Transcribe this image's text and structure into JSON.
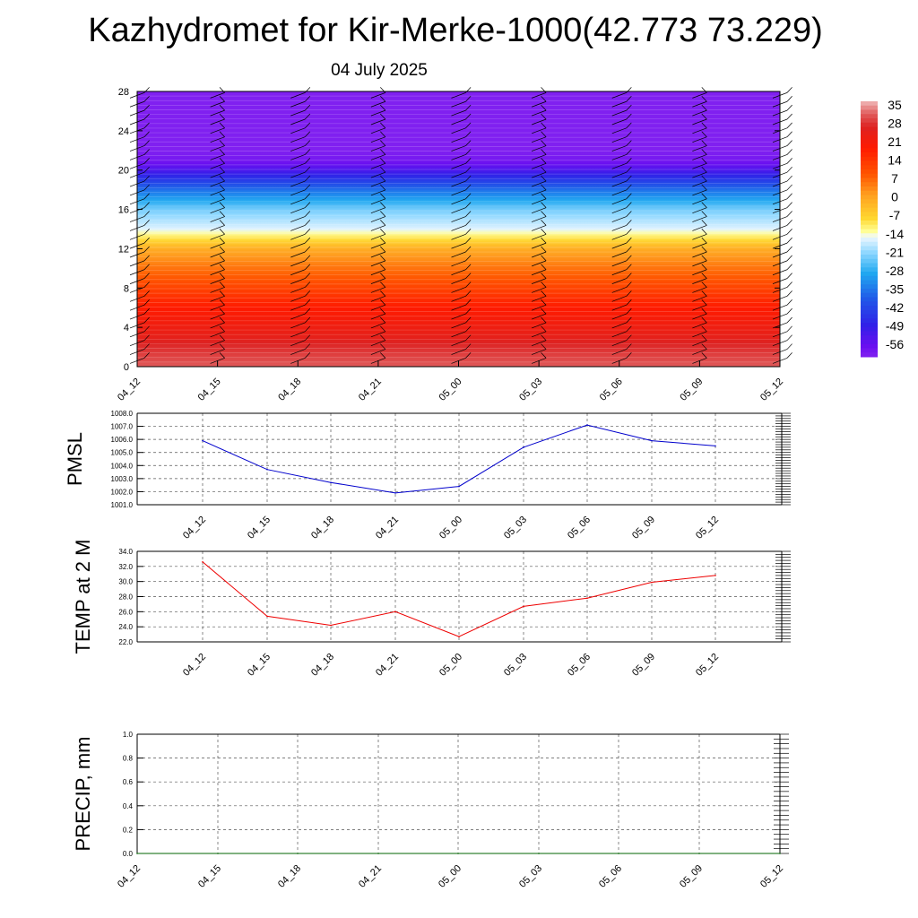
{
  "header": {
    "title": "Kazhydromet for Kir-Merke-1000(42.773 73.229)",
    "date": "04 July 2025"
  },
  "colors": {
    "pmsl_line": "#0000cc",
    "temp_line": "#ee0000",
    "precip_line": "#006400"
  },
  "chart_data": [
    {
      "type": "heatmap",
      "name": "cross-section",
      "x_ticks": [
        "04_12",
        "04_15",
        "04_18",
        "04_21",
        "05_00",
        "05_03",
        "05_06",
        "05_09",
        "05_12"
      ],
      "y_ticks": [
        0,
        4,
        8,
        12,
        16,
        20,
        24,
        28
      ],
      "ylim": [
        0,
        28
      ],
      "colorbar": {
        "labels": [
          "35",
          "28",
          "21",
          "14",
          "7",
          "0",
          "-7",
          "-14",
          "-21",
          "-28",
          "-35",
          "-42",
          "-49",
          "-56"
        ],
        "range": [
          -60,
          38
        ],
        "stops": [
          {
            "v": 38,
            "c": "#f0b8b8"
          },
          {
            "v": 33,
            "c": "#e05a5a"
          },
          {
            "v": 28,
            "c": "#dd2222"
          },
          {
            "v": 20,
            "c": "#ff1a00"
          },
          {
            "v": 10,
            "c": "#ff5500"
          },
          {
            "v": 2,
            "c": "#ffa020"
          },
          {
            "v": -7,
            "c": "#ffd830"
          },
          {
            "v": -12,
            "c": "#ffff9a"
          },
          {
            "v": -14,
            "c": "#f0f8ff"
          },
          {
            "v": -20,
            "c": "#90d8ff"
          },
          {
            "v": -28,
            "c": "#20a8f0"
          },
          {
            "v": -38,
            "c": "#2058e8"
          },
          {
            "v": -48,
            "c": "#3020e8"
          },
          {
            "v": -56,
            "c": "#6a10f0"
          },
          {
            "v": -60,
            "c": "#8020f0"
          }
        ]
      },
      "profile": {
        "heights": [
          0,
          1,
          2,
          3,
          4,
          5,
          6,
          8,
          10,
          12,
          13,
          14,
          16,
          18,
          20,
          21,
          22,
          28
        ],
        "temps": [
          33,
          31,
          29,
          26,
          24,
          22,
          20,
          13,
          7,
          0,
          -8,
          -15,
          -22,
          -35,
          -52,
          -58,
          -60,
          -60
        ]
      },
      "wind_barbs": "vertical column of barbs at each time step"
    },
    {
      "type": "line",
      "name": "PMSL",
      "ylabel": "PMSL",
      "x": [
        "04_12",
        "04_15",
        "04_18",
        "04_21",
        "05_00",
        "05_03",
        "05_06",
        "05_09",
        "05_12"
      ],
      "values": [
        1005.9,
        1003.7,
        1002.7,
        1001.9,
        1002.4,
        1005.4,
        1007.1,
        1005.9,
        1005.5
      ],
      "ylim": [
        1001.0,
        1008.0
      ],
      "y_ticks": [
        "1001.0",
        "1002.0",
        "1003.0",
        "1004.0",
        "1005.0",
        "1006.0",
        "1007.0",
        "1008.0"
      ]
    },
    {
      "type": "line",
      "name": "TEMP at 2 M",
      "ylabel": "TEMP at 2 M",
      "x": [
        "04_12",
        "04_15",
        "04_18",
        "04_21",
        "05_00",
        "05_03",
        "05_06",
        "05_09",
        "05_12"
      ],
      "values": [
        32.6,
        25.4,
        24.2,
        26.0,
        22.7,
        26.7,
        27.8,
        29.9,
        30.8
      ],
      "ylim": [
        22.0,
        34.0
      ],
      "y_ticks": [
        "22.0",
        "24.0",
        "26.0",
        "28.0",
        "30.0",
        "32.0",
        "34.0"
      ]
    },
    {
      "type": "line",
      "name": "PRECIP, mm",
      "ylabel": "PRECIP, mm",
      "x": [
        "04_12",
        "04_15",
        "04_18",
        "04_21",
        "05_00",
        "05_03",
        "05_06",
        "05_09",
        "05_12"
      ],
      "values": [
        0,
        0,
        0,
        0,
        0,
        0,
        0,
        0,
        0
      ],
      "ylim": [
        0.0,
        1.0
      ],
      "y_ticks": [
        "0.0",
        "0.2",
        "0.4",
        "0.6",
        "0.8",
        "1.0"
      ]
    }
  ]
}
